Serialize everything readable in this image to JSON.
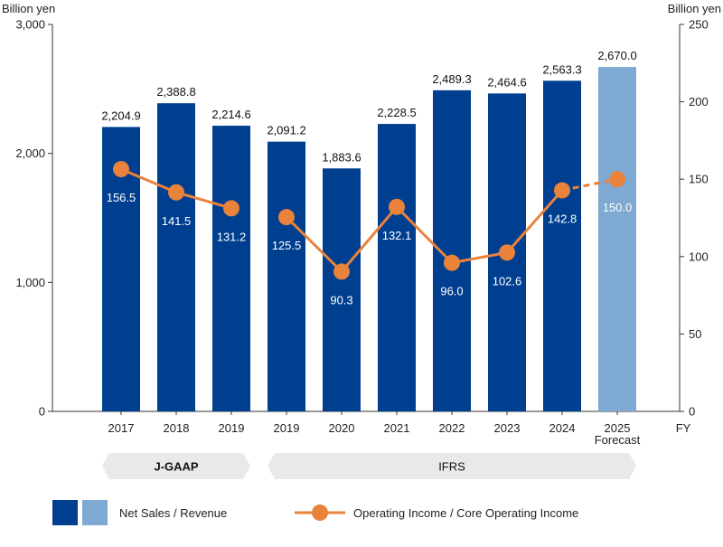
{
  "chart_data": {
    "type": "bar",
    "title": "",
    "left_axis": {
      "unit": "Billion yen",
      "ylim": [
        0,
        3000
      ],
      "ticks": [
        "0",
        "1,000",
        "2,000",
        "3,000"
      ]
    },
    "right_axis": {
      "unit": "Billion yen",
      "ylim": [
        0,
        250
      ],
      "ticks": [
        "0",
        "50",
        "100",
        "150",
        "200",
        "250"
      ]
    },
    "x_axis_suffix": "FY",
    "categories": [
      "2017",
      "2018",
      "2019",
      "2019",
      "2020",
      "2021",
      "2022",
      "2023",
      "2024",
      "2025"
    ],
    "category_sublabels": [
      "",
      "",
      "",
      "",
      "",
      "",
      "",
      "",
      "",
      "Forecast"
    ],
    "groups": [
      {
        "label": "J-GAAP",
        "from": 0,
        "to": 2,
        "bold": true
      },
      {
        "label": "IFRS",
        "from": 3,
        "to": 9,
        "bold": false
      }
    ],
    "series": [
      {
        "name": "Net Sales / Revenue",
        "type": "bar",
        "axis": "left",
        "values": [
          2204.9,
          2388.8,
          2214.6,
          2091.2,
          1883.6,
          2228.5,
          2489.3,
          2464.6,
          2563.3,
          2670.0
        ],
        "labels": [
          "2,204.9",
          "2,388.8",
          "2,214.6",
          "2,091.2",
          "1,883.6",
          "2,228.5",
          "2,489.3",
          "2,464.6",
          "2,563.3",
          "2,670.0"
        ],
        "colors": [
          "#003F8F",
          "#7DA9D2"
        ],
        "forecast_from": 9
      },
      {
        "name": "Operating Income / Core Operating Income",
        "type": "line",
        "axis": "right",
        "color": "#E9823B",
        "values": [
          156.5,
          141.5,
          131.2,
          125.5,
          90.3,
          132.1,
          96.0,
          102.6,
          142.8,
          150.0
        ],
        "labels": [
          "156.5",
          "141.5",
          "131.2",
          "125.5",
          "90.3",
          "132.1",
          "96.0",
          "102.6",
          "142.8",
          "150.0"
        ],
        "segments": [
          [
            0,
            2
          ],
          [
            3,
            8
          ]
        ],
        "forecast_from": 9
      }
    ],
    "grid": false,
    "legend_position": "bottom"
  },
  "legend": {
    "bar_label": "Net Sales / Revenue",
    "line_label": "Operating Income / Core Operating Income"
  },
  "colors": {
    "bar": "#003F8F",
    "bar_forecast": "#7DA9D2",
    "line": "#E9823B",
    "band": "#E9E9E9"
  }
}
